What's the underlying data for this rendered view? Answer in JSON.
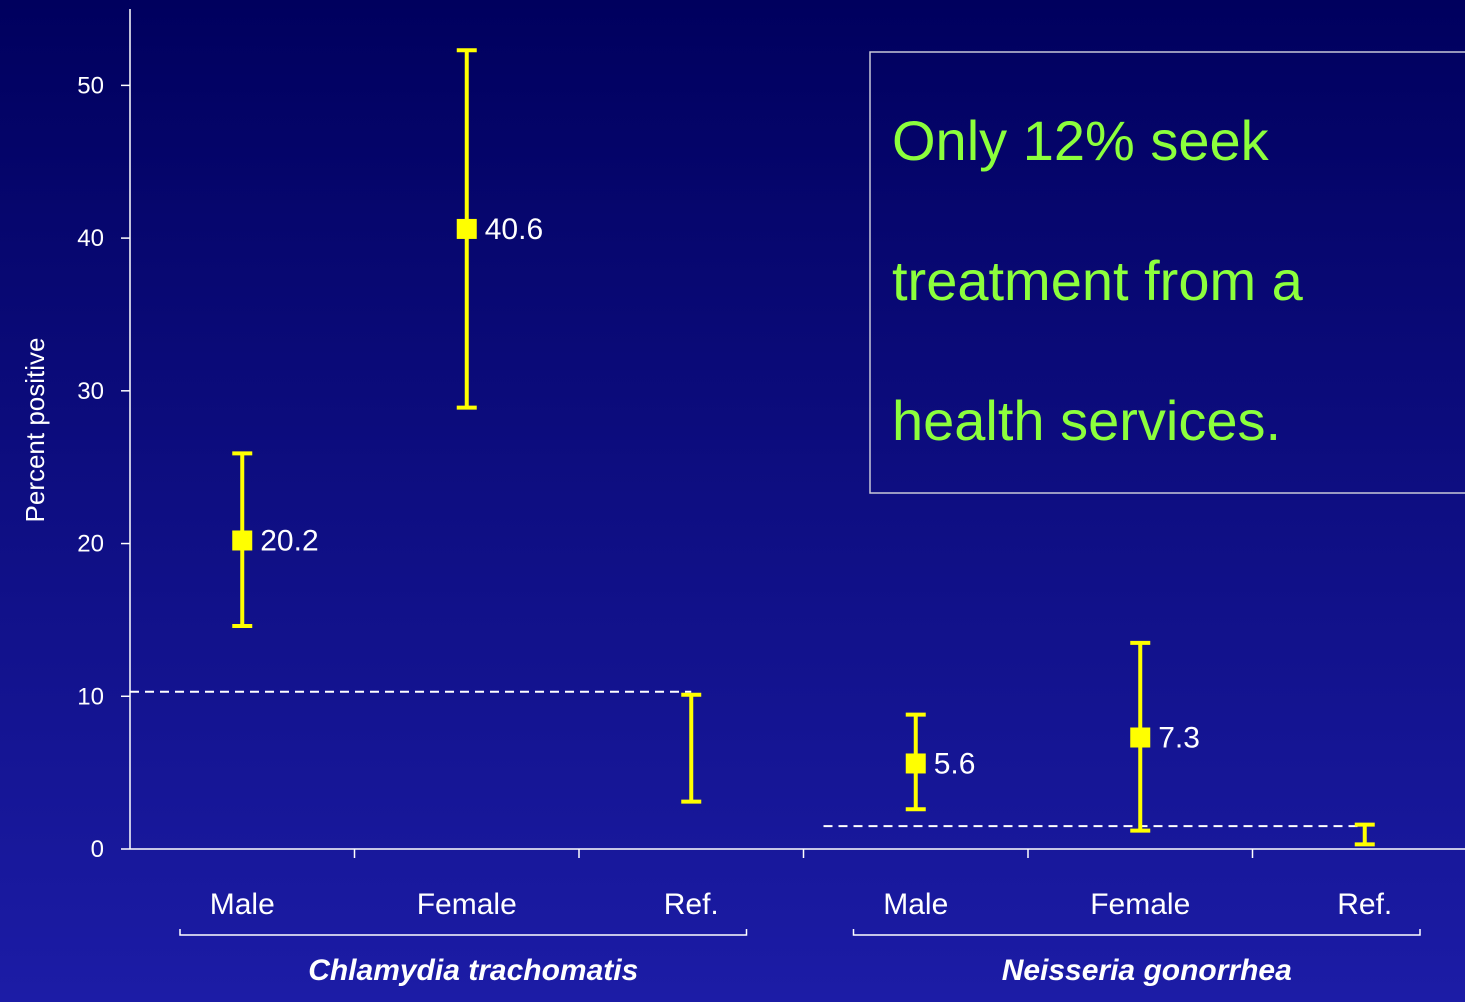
{
  "chart_data": {
    "type": "errorbar",
    "ylabel": "Percent positive",
    "categories": [
      "Male",
      "Female",
      "Ref.",
      "Male",
      "Female",
      "Ref."
    ],
    "groups": [
      {
        "name": "Chlamydia trachomatis",
        "size": 3,
        "reference": 10.3
      },
      {
        "name": "Neisseria gonorrhea",
        "size": 3,
        "reference": 1.5
      }
    ],
    "values": [
      20.2,
      40.6,
      null,
      5.6,
      7.3,
      null
    ],
    "lower": [
      14.6,
      28.9,
      3.1,
      2.6,
      1.2,
      0.3
    ],
    "upper": [
      25.9,
      52.3,
      10.1,
      8.8,
      13.5,
      1.6
    ],
    "color": "#ffff00",
    "ylim": [
      0,
      55
    ],
    "yticks": [
      0,
      10,
      20,
      30,
      40,
      50
    ],
    "annotation": [
      "Only 12% seek",
      "treatment from a",
      "health services."
    ]
  }
}
